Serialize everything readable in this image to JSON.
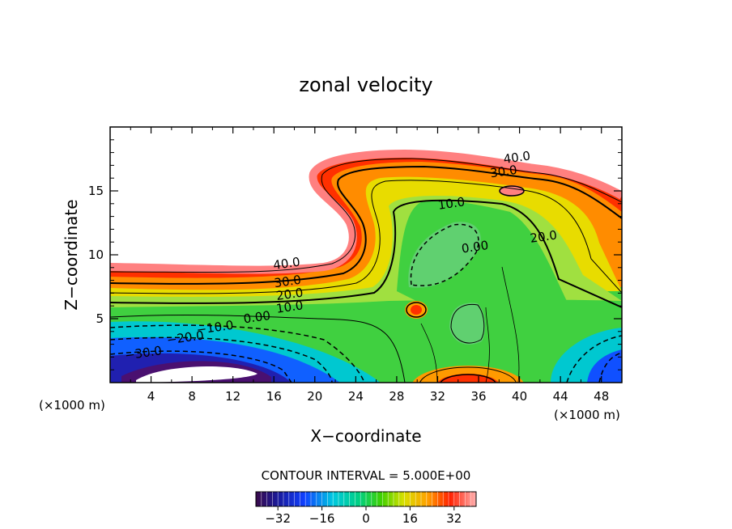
{
  "chart_data": {
    "type": "heatmap",
    "title": "zonal velocity",
    "xlabel": "X−coordinate",
    "ylabel": "Z−coordinate",
    "x_unit_left": "(×1000 m)",
    "x_unit_right": "(×1000 m)",
    "xlim": [
      0,
      50
    ],
    "ylim": [
      0,
      20
    ],
    "xticks": [
      4,
      8,
      12,
      16,
      20,
      24,
      28,
      32,
      36,
      40,
      44,
      48
    ],
    "yticks": [
      5,
      10,
      15
    ],
    "contour_interval_text": "CONTOUR INTERVAL = 5.000E+00",
    "colorbar": {
      "range": [
        -40,
        40
      ],
      "ticks": [
        -32,
        -16,
        0,
        16,
        32
      ],
      "tick_labels": [
        "−32",
        "−16",
        "0",
        "16",
        "32"
      ]
    },
    "contour_labels": [
      {
        "text": "40.0",
        "x": 17.3,
        "y": 9.0
      },
      {
        "text": "30.0",
        "x": 17.4,
        "y": 7.6
      },
      {
        "text": "20.0",
        "x": 17.6,
        "y": 6.6
      },
      {
        "text": "10.0",
        "x": 17.6,
        "y": 5.6
      },
      {
        "text": "0.00",
        "x": 14.4,
        "y": 4.8
      },
      {
        "text": "−10.0",
        "x": 10.3,
        "y": 4.0
      },
      {
        "text": "−20.0",
        "x": 7.4,
        "y": 3.2
      },
      {
        "text": "−30.0",
        "x": 3.3,
        "y": 2.0
      },
      {
        "text": "40.0",
        "x": 39.8,
        "y": 17.3
      },
      {
        "text": "30.0",
        "x": 38.5,
        "y": 16.2
      },
      {
        "text": "10.0",
        "x": 33.4,
        "y": 13.7
      },
      {
        "text": "0.00",
        "x": 35.7,
        "y": 10.3
      },
      {
        "text": "20.0",
        "x": 42.4,
        "y": 11.1
      }
    ]
  }
}
